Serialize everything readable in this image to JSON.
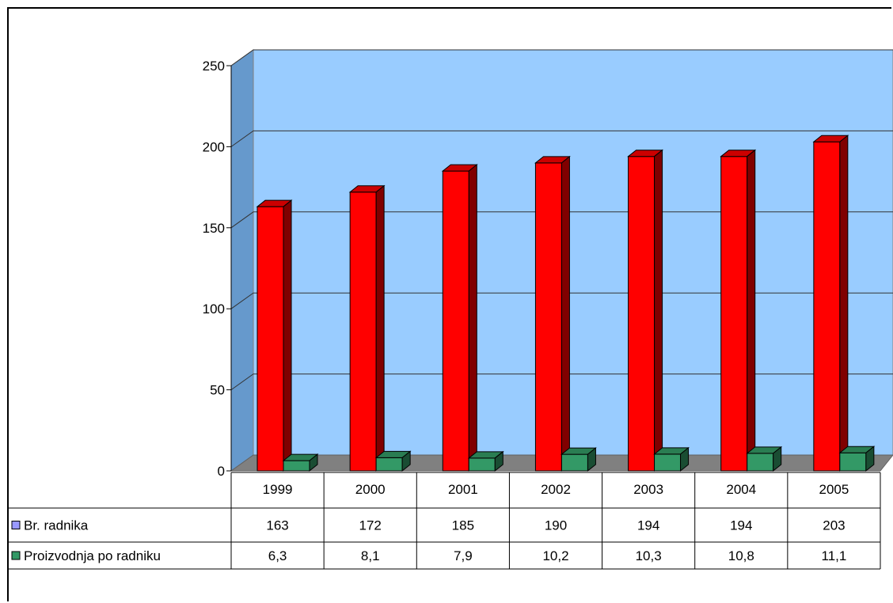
{
  "chart_data": {
    "type": "bar",
    "categories": [
      "1999",
      "2000",
      "2001",
      "2002",
      "2003",
      "2004",
      "2005"
    ],
    "series": [
      {
        "name": "Br. radnika",
        "values": [
          163,
          172,
          185,
          190,
          194,
          194,
          203
        ],
        "display": [
          "163",
          "172",
          "185",
          "190",
          "194",
          "194",
          "203"
        ]
      },
      {
        "name": "Proizvodnja po radniku",
        "values": [
          6.3,
          8.1,
          7.9,
          10.2,
          10.3,
          10.8,
          11.1
        ],
        "display": [
          "6,3",
          "8,1",
          "7,9",
          "10,2",
          "10,3",
          "10,8",
          "11,1"
        ]
      }
    ],
    "yticks": [
      "0",
      "50",
      "100",
      "150",
      "200",
      "250"
    ],
    "ylim": [
      0,
      250
    ],
    "grid": true,
    "data_table": true,
    "colors": {
      "wall": "#99ccff",
      "series1_front": "#ff0000",
      "series1_top": "#cc0000",
      "series1_side": "#800000",
      "series2_front": "#339966",
      "series2_top": "#2a7d52",
      "series2_side": "#1a4d33",
      "legend_key_series1": "#9999ff",
      "legend_key_series2": "#339966"
    }
  }
}
